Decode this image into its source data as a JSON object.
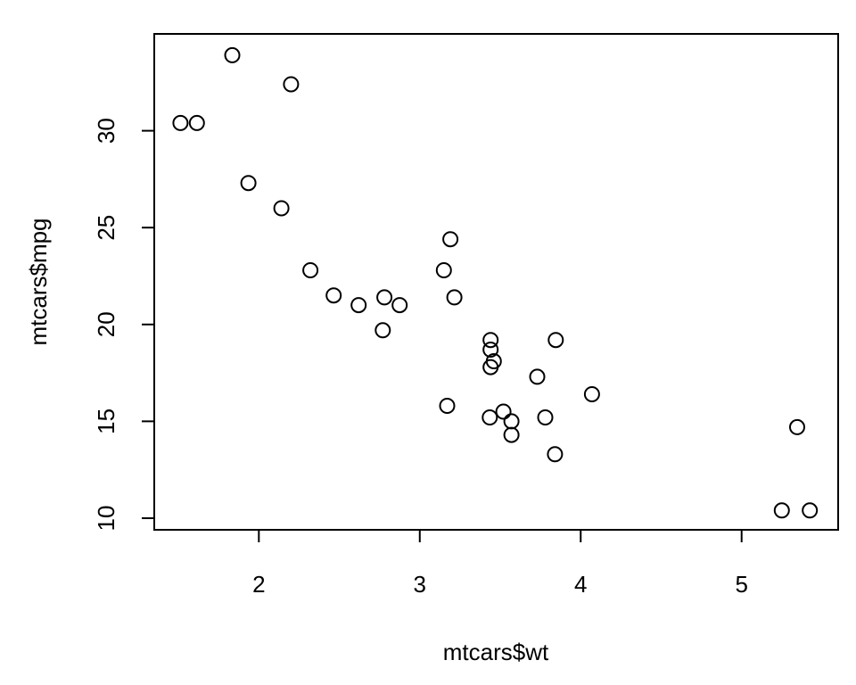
{
  "chart_data": {
    "type": "scatter",
    "xlabel": "mtcars$wt",
    "ylabel": "mtcars$mpg",
    "xlim": [
      1.35,
      5.6
    ],
    "ylim": [
      9.4,
      35.0
    ],
    "x_ticks": [
      2,
      3,
      4,
      5
    ],
    "y_ticks": [
      10,
      15,
      20,
      25,
      30
    ],
    "grid": false,
    "point_style": "open-circle",
    "series": [
      {
        "x": [
          2.62,
          2.875,
          2.32,
          3.215,
          3.44,
          3.46,
          3.57,
          3.19,
          3.15,
          3.44,
          3.44,
          4.07,
          3.73,
          3.78,
          5.25,
          5.424,
          5.345,
          2.2,
          1.615,
          1.835,
          2.465,
          3.52,
          3.435,
          3.84,
          3.845,
          1.935,
          2.14,
          1.513,
          3.17,
          2.77,
          3.57,
          2.78
        ],
        "y": [
          21.0,
          21.0,
          22.8,
          21.4,
          18.7,
          18.1,
          14.3,
          24.4,
          22.8,
          19.2,
          17.8,
          16.4,
          17.3,
          15.2,
          10.4,
          10.4,
          14.7,
          32.4,
          30.4,
          33.9,
          21.5,
          15.5,
          15.2,
          13.3,
          19.2,
          27.3,
          26.0,
          30.4,
          15.8,
          19.7,
          15.0,
          21.4
        ]
      }
    ]
  }
}
